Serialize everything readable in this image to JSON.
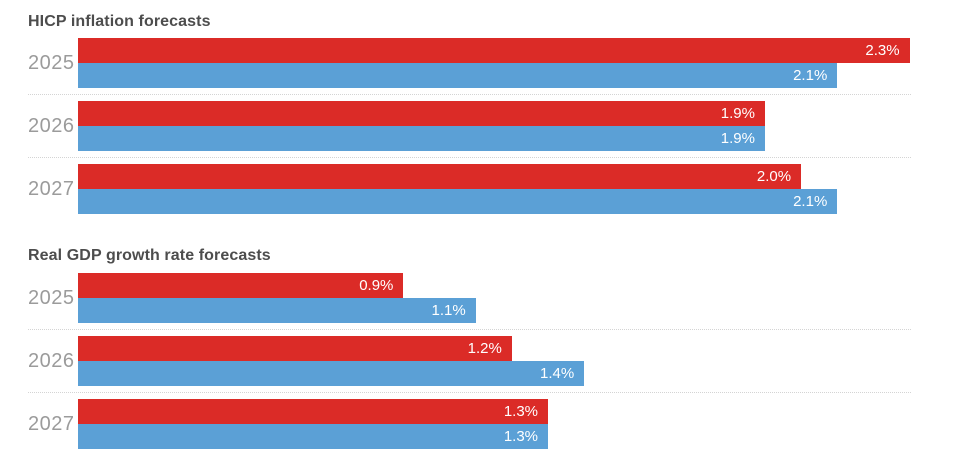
{
  "colors": {
    "background": "#ffffff",
    "section_title": "#4d4d4d",
    "year_label": "#9b9b9b",
    "value_label": "#ffffff",
    "separator": "#d4d4d4",
    "series_red": "#db2b27",
    "series_blue": "#5ba0d6"
  },
  "chart_data": [
    {
      "type": "bar",
      "orientation": "horizontal",
      "title": "HICP inflation forecasts",
      "unit": "%",
      "xlim": [
        0,
        2.42
      ],
      "grid": "dotted row separators",
      "legend": "none",
      "value_labels": "inside end, white",
      "categories": [
        "2025",
        "2026",
        "2027"
      ],
      "series": [
        {
          "name": "red",
          "color": "#db2b27",
          "values": [
            2.3,
            1.9,
            2.0
          ],
          "labels": [
            "2.3%",
            "1.9%",
            "2.0%"
          ]
        },
        {
          "name": "blue",
          "color": "#5ba0d6",
          "values": [
            2.1,
            1.9,
            2.1
          ],
          "labels": [
            "2.1%",
            "1.9%",
            "2.1%"
          ]
        }
      ]
    },
    {
      "type": "bar",
      "orientation": "horizontal",
      "title": "Real GDP growth rate forecasts",
      "unit": "%",
      "xlim": [
        0,
        2.42
      ],
      "grid": "dotted row separators",
      "legend": "none",
      "value_labels": "inside end, white",
      "categories": [
        "2025",
        "2026",
        "2027"
      ],
      "series": [
        {
          "name": "red",
          "color": "#db2b27",
          "values": [
            0.9,
            1.2,
            1.3
          ],
          "labels": [
            "0.9%",
            "1.2%",
            "1.3%"
          ]
        },
        {
          "name": "blue",
          "color": "#5ba0d6",
          "values": [
            1.1,
            1.4,
            1.3
          ],
          "labels": [
            "1.1%",
            "1.4%",
            "1.3%"
          ]
        }
      ]
    }
  ]
}
